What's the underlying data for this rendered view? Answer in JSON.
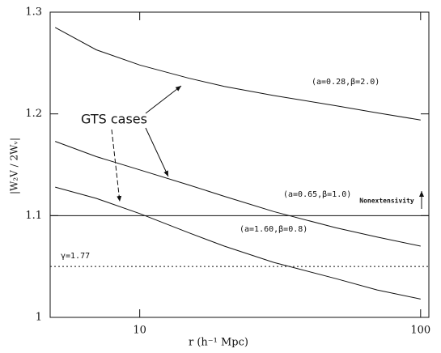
{
  "chart_data": {
    "type": "line",
    "x_label": "r (h⁻¹ Mpc)",
    "y_label": "|W₂V / 2Wᵥ|",
    "annotation": "GTS cases",
    "x": [
      5,
      7,
      10,
      15,
      20,
      30,
      50,
      70,
      100
    ],
    "xlim": [
      4.8,
      107
    ],
    "xticks": [
      10,
      100
    ],
    "xscale": "log",
    "ylim": [
      1,
      1.3
    ],
    "yticks": [
      1,
      1.1,
      1.2,
      1.3
    ],
    "series": [
      {
        "name": "(a=0.28,β=2.0)",
        "color": "#111111",
        "values": [
          1.285,
          1.263,
          1.248,
          1.235,
          1.227,
          1.218,
          1.208,
          1.201,
          1.194
        ]
      },
      {
        "name": "(a=0.65,β=1.0)",
        "color": "#111111",
        "values": [
          1.173,
          1.158,
          1.145,
          1.13,
          1.119,
          1.104,
          1.088,
          1.079,
          1.07
        ]
      },
      {
        "name": "(a=1.60,β=0.8)",
        "color": "#111111",
        "values": [
          1.128,
          1.117,
          1.102,
          1.083,
          1.07,
          1.054,
          1.038,
          1.027,
          1.018
        ]
      }
    ],
    "reference_lines": [
      {
        "value": 1.1,
        "label": "Nonextensivity",
        "style": "solid"
      },
      {
        "value": 1.05,
        "label": "γ=1.77",
        "style": "dotted"
      }
    ]
  }
}
